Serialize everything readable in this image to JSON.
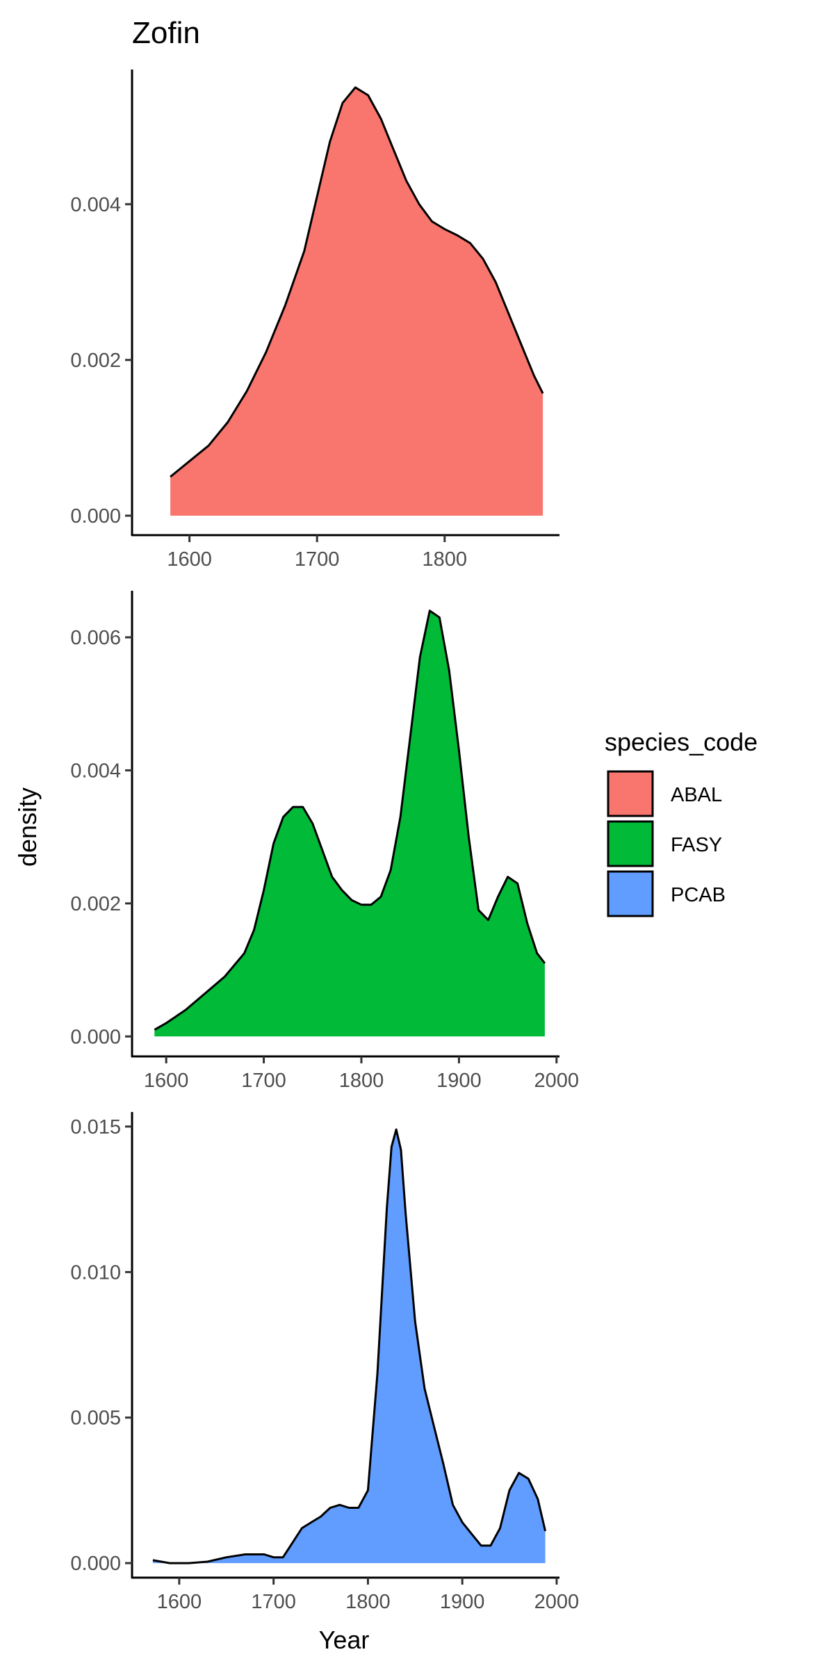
{
  "chart_data": {
    "type": "area",
    "title": "Zofin",
    "xlabel": "Year",
    "ylabel": "density",
    "grid": false,
    "legend": {
      "title": "species_code",
      "placement": "right",
      "entries": [
        {
          "label": "ABAL",
          "color": "#F8766D"
        },
        {
          "label": "FASY",
          "color": "#00BA38"
        },
        {
          "label": "PCAB",
          "color": "#619CFF"
        }
      ]
    },
    "panels": [
      {
        "series_name": "ABAL",
        "color": "#F8766D",
        "xlim": [
          1555,
          1890
        ],
        "ylim": [
          -0.00025,
          0.00573
        ],
        "xticks": [
          1600,
          1700,
          1800
        ],
        "yticks": [
          0.0,
          0.002,
          0.004
        ],
        "ytick_labels": [
          "0.000",
          "0.002",
          "0.004"
        ],
        "x": [
          1585,
          1600,
          1615,
          1630,
          1645,
          1660,
          1675,
          1690,
          1700,
          1710,
          1720,
          1730,
          1740,
          1750,
          1760,
          1770,
          1780,
          1790,
          1800,
          1810,
          1820,
          1830,
          1840,
          1850,
          1860,
          1870,
          1877
        ],
        "y": [
          0.0005,
          0.0007,
          0.0009,
          0.0012,
          0.0016,
          0.0021,
          0.0027,
          0.0034,
          0.0041,
          0.0048,
          0.0053,
          0.0055,
          0.0054,
          0.0051,
          0.0047,
          0.0043,
          0.004,
          0.00378,
          0.00368,
          0.0036,
          0.0035,
          0.0033,
          0.003,
          0.0026,
          0.0022,
          0.0018,
          0.00157
        ]
      },
      {
        "series_name": "FASY",
        "color": "#00BA38",
        "xlim": [
          1565,
          2003
        ],
        "ylim": [
          -0.0003,
          0.0067
        ],
        "xticks": [
          1600,
          1700,
          1800,
          1900,
          2000
        ],
        "yticks": [
          0.0,
          0.002,
          0.004,
          0.006
        ],
        "ytick_labels": [
          "0.000",
          "0.002",
          "0.004",
          "0.006"
        ],
        "x": [
          1588,
          1600,
          1620,
          1640,
          1660,
          1680,
          1690,
          1700,
          1710,
          1720,
          1730,
          1740,
          1750,
          1760,
          1770,
          1780,
          1790,
          1800,
          1810,
          1820,
          1830,
          1840,
          1850,
          1860,
          1870,
          1880,
          1890,
          1900,
          1910,
          1920,
          1930,
          1940,
          1950,
          1960,
          1970,
          1980,
          1988
        ],
        "y": [
          0.0001,
          0.0002,
          0.0004,
          0.00065,
          0.0009,
          0.00125,
          0.0016,
          0.0022,
          0.0029,
          0.0033,
          0.00345,
          0.00345,
          0.0032,
          0.0028,
          0.0024,
          0.0022,
          0.00205,
          0.00198,
          0.00198,
          0.0021,
          0.0025,
          0.0033,
          0.0045,
          0.0057,
          0.0064,
          0.0063,
          0.0055,
          0.0043,
          0.003,
          0.0019,
          0.00175,
          0.0021,
          0.0024,
          0.0023,
          0.0017,
          0.00125,
          0.0011
        ]
      },
      {
        "series_name": "PCAB",
        "color": "#619CFF",
        "xlim": [
          1550,
          2003
        ],
        "ylim": [
          -0.0005,
          0.0155
        ],
        "xticks": [
          1600,
          1700,
          1800,
          1900,
          2000
        ],
        "yticks": [
          0.0,
          0.005,
          0.01,
          0.015
        ],
        "ytick_labels": [
          "0.000",
          "0.005",
          "0.010",
          "0.015"
        ],
        "x": [
          1572,
          1590,
          1610,
          1630,
          1650,
          1670,
          1690,
          1700,
          1710,
          1720,
          1730,
          1740,
          1750,
          1760,
          1770,
          1780,
          1790,
          1800,
          1810,
          1820,
          1825,
          1830,
          1835,
          1840,
          1850,
          1860,
          1870,
          1880,
          1890,
          1900,
          1910,
          1920,
          1930,
          1940,
          1950,
          1960,
          1970,
          1980,
          1988
        ],
        "y": [
          0.0001,
          0.0,
          0.0,
          5e-05,
          0.0002,
          0.0003,
          0.0003,
          0.0002,
          0.0002,
          0.0007,
          0.0012,
          0.0014,
          0.0016,
          0.0019,
          0.002,
          0.0019,
          0.0019,
          0.0025,
          0.0065,
          0.0122,
          0.0143,
          0.0149,
          0.0142,
          0.012,
          0.0083,
          0.006,
          0.0047,
          0.0034,
          0.002,
          0.0014,
          0.001,
          0.0006,
          0.0006,
          0.0012,
          0.0025,
          0.0031,
          0.0029,
          0.0022,
          0.0011
        ]
      }
    ]
  }
}
